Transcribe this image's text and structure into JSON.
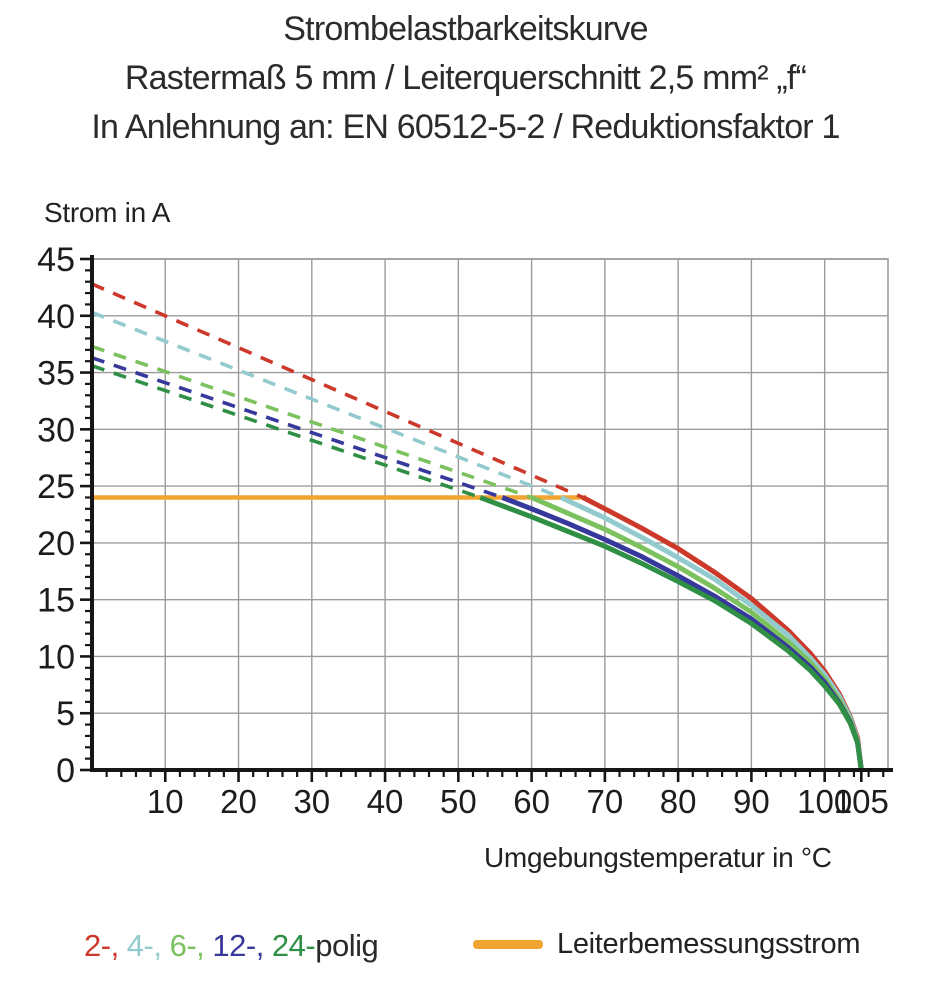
{
  "title": {
    "line1": "Strombelastbarkeitskurve",
    "line2": "Rastermaß 5 mm / Leiterquerschnitt 2,5 mm² „f“",
    "line3": "In Anlehnung an: EN 60512-5-2 / Reduktionsfaktor 1"
  },
  "chart_data": {
    "type": "line",
    "ylabel": "Strom in A",
    "xlabel": "Umgebungstemperatur in °C",
    "xlim": [
      0,
      108.6
    ],
    "ylim": [
      0,
      45
    ],
    "x_ticks": [
      10,
      20,
      30,
      40,
      50,
      60,
      70,
      80,
      90,
      100,
      105
    ],
    "y_ticks": [
      0,
      5,
      10,
      15,
      20,
      25,
      30,
      35,
      40,
      45
    ],
    "x_gridlines": [
      10,
      20,
      30,
      40,
      50,
      60,
      70,
      80,
      90,
      100
    ],
    "y_gridlines": [
      5,
      10,
      15,
      20,
      25,
      30,
      35,
      40,
      45
    ],
    "x_minor_tick_step": 2,
    "y_minor_tick_step": 1,
    "grid": true,
    "grid_color": "#9b9b9b",
    "axis_color": "#161616",
    "tick_label_color": "#1c1c1c",
    "max_temperature_C": 105,
    "rated_current_line": {
      "label": "Leiterbemessungsstrom",
      "value_A": 24,
      "x_range": [
        0,
        67.5
      ],
      "color": "#f2a431"
    },
    "series": [
      {
        "name": "2-polig",
        "poles": 2,
        "color": "#cc392b",
        "current_at_0C_A": 42.8,
        "derating_knee_C": 67,
        "dashed_points": [
          [
            0,
            42.8
          ],
          [
            67,
            24
          ]
        ],
        "solid_points": [
          [
            67,
            24
          ],
          [
            70,
            23.0
          ],
          [
            75,
            21.3
          ],
          [
            80,
            19.5
          ],
          [
            85,
            17.4
          ],
          [
            90,
            15.1
          ],
          [
            95,
            12.3
          ],
          [
            98,
            10.3
          ],
          [
            100,
            8.7
          ],
          [
            102,
            6.7
          ],
          [
            103.5,
            4.7
          ],
          [
            104.5,
            2.8
          ],
          [
            105,
            0
          ]
        ]
      },
      {
        "name": "4-polig",
        "poles": 4,
        "color": "#92cacd",
        "current_at_0C_A": 40.3,
        "derating_knee_C": 64,
        "dashed_points": [
          [
            0,
            40.3
          ],
          [
            64,
            24
          ]
        ],
        "solid_points": [
          [
            64,
            24
          ],
          [
            67,
            23.1
          ],
          [
            70,
            22.2
          ],
          [
            75,
            20.5
          ],
          [
            80,
            18.7
          ],
          [
            85,
            16.8
          ],
          [
            90,
            14.5
          ],
          [
            95,
            11.9
          ],
          [
            98,
            9.9
          ],
          [
            100,
            8.4
          ],
          [
            102,
            6.5
          ],
          [
            103.5,
            4.6
          ],
          [
            104.5,
            2.6
          ],
          [
            105,
            0
          ]
        ]
      },
      {
        "name": "6-polig",
        "poles": 6,
        "color": "#7bc25f",
        "current_at_0C_A": 37.3,
        "derating_knee_C": 60,
        "dashed_points": [
          [
            0,
            37.3
          ],
          [
            60,
            24
          ]
        ],
        "solid_points": [
          [
            60,
            24
          ],
          [
            65,
            22.6
          ],
          [
            70,
            21.2
          ],
          [
            75,
            19.6
          ],
          [
            80,
            17.9
          ],
          [
            85,
            16.0
          ],
          [
            90,
            13.9
          ],
          [
            95,
            11.3
          ],
          [
            98,
            9.5
          ],
          [
            100,
            8.0
          ],
          [
            102,
            6.2
          ],
          [
            103.5,
            4.4
          ],
          [
            104.5,
            2.5
          ],
          [
            105,
            0
          ]
        ]
      },
      {
        "name": "12-polig",
        "poles": 12,
        "color": "#37389b",
        "current_at_0C_A": 36.3,
        "derating_knee_C": 56,
        "dashed_points": [
          [
            0,
            36.3
          ],
          [
            56,
            24
          ]
        ],
        "solid_points": [
          [
            56,
            24
          ],
          [
            60,
            23.0
          ],
          [
            65,
            21.7
          ],
          [
            70,
            20.3
          ],
          [
            75,
            18.8
          ],
          [
            80,
            17.1
          ],
          [
            85,
            15.3
          ],
          [
            90,
            13.3
          ],
          [
            95,
            10.8
          ],
          [
            98,
            9.1
          ],
          [
            100,
            7.7
          ],
          [
            102,
            5.9
          ],
          [
            103.5,
            4.2
          ],
          [
            104.5,
            2.4
          ],
          [
            105,
            0
          ]
        ]
      },
      {
        "name": "24-polig",
        "poles": 24,
        "color": "#2e8f45",
        "current_at_0C_A": 35.6,
        "derating_knee_C": 53,
        "dashed_points": [
          [
            0,
            35.6
          ],
          [
            53,
            24
          ]
        ],
        "solid_points": [
          [
            53,
            24
          ],
          [
            55,
            23.5
          ],
          [
            60,
            22.3
          ],
          [
            65,
            21.0
          ],
          [
            70,
            19.7
          ],
          [
            75,
            18.2
          ],
          [
            80,
            16.6
          ],
          [
            85,
            14.9
          ],
          [
            90,
            12.9
          ],
          [
            95,
            10.5
          ],
          [
            98,
            8.8
          ],
          [
            100,
            7.4
          ],
          [
            102,
            5.8
          ],
          [
            103.5,
            4.1
          ],
          [
            104.5,
            2.4
          ],
          [
            105,
            0
          ]
        ]
      }
    ]
  },
  "legend": {
    "poles_parts": [
      {
        "text": "2-, ",
        "color": "#cc392b"
      },
      {
        "text": "4-, ",
        "color": "#92cacd"
      },
      {
        "text": "6-, ",
        "color": "#7bc25f"
      },
      {
        "text": "12-, ",
        "color": "#37389b"
      },
      {
        "text": "24-",
        "color": "#2e8f45"
      },
      {
        "text": "polig",
        "color": "#2a2a2a"
      }
    ],
    "rated_current_label": "Leiterbemessungsstrom"
  }
}
